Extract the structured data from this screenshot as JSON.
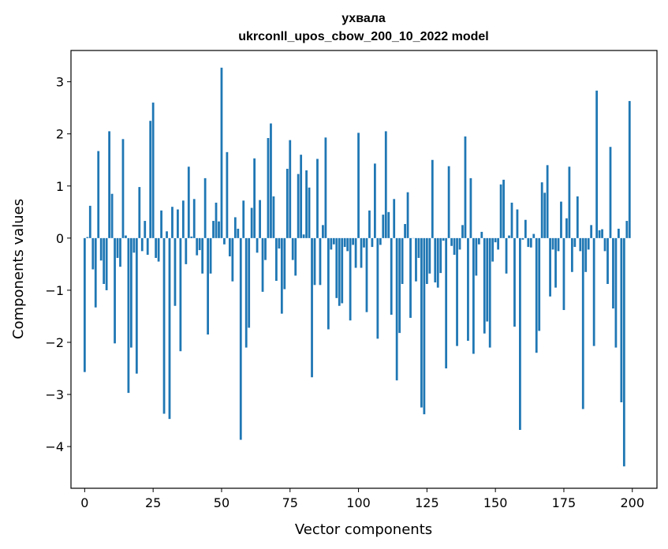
{
  "chart_data": {
    "type": "bar",
    "title": "ухвала",
    "subtitle": "ukrconll_upos_cbow_200_10_2022 model",
    "xlabel": "Vector components",
    "ylabel": "Components values",
    "xlim": [
      -5,
      209
    ],
    "ylim": [
      -4.8,
      3.6
    ],
    "xticks": [
      0,
      25,
      50,
      75,
      100,
      125,
      150,
      175,
      200
    ],
    "yticks": [
      -4,
      -3,
      -2,
      -1,
      0,
      1,
      2,
      3
    ],
    "xtick_labels": [
      "0",
      "25",
      "50",
      "75",
      "100",
      "125",
      "150",
      "175",
      "200"
    ],
    "ytick_labels": [
      "−4",
      "−3",
      "−2",
      "−1",
      "0",
      "1",
      "2",
      "3"
    ],
    "grid": false,
    "bar_color": "#1f77b4",
    "x": [
      0,
      1,
      2,
      3,
      4,
      5,
      6,
      7,
      8,
      9,
      10,
      11,
      12,
      13,
      14,
      15,
      16,
      17,
      18,
      19,
      20,
      21,
      22,
      23,
      24,
      25,
      26,
      27,
      28,
      29,
      30,
      31,
      32,
      33,
      34,
      35,
      36,
      37,
      38,
      39,
      40,
      41,
      42,
      43,
      44,
      45,
      46,
      47,
      48,
      49,
      50,
      51,
      52,
      53,
      54,
      55,
      56,
      57,
      58,
      59,
      60,
      61,
      62,
      63,
      64,
      65,
      66,
      67,
      68,
      69,
      70,
      71,
      72,
      73,
      74,
      75,
      76,
      77,
      78,
      79,
      80,
      81,
      82,
      83,
      84,
      85,
      86,
      87,
      88,
      89,
      90,
      91,
      92,
      93,
      94,
      95,
      96,
      97,
      98,
      99,
      100,
      101,
      102,
      103,
      104,
      105,
      106,
      107,
      108,
      109,
      110,
      111,
      112,
      113,
      114,
      115,
      116,
      117,
      118,
      119,
      120,
      121,
      122,
      123,
      124,
      125,
      126,
      127,
      128,
      129,
      130,
      131,
      132,
      133,
      134,
      135,
      136,
      137,
      138,
      139,
      140,
      141,
      142,
      143,
      144,
      145,
      146,
      147,
      148,
      149,
      150,
      151,
      152,
      153,
      154,
      155,
      156,
      157,
      158,
      159,
      160,
      161,
      162,
      163,
      164,
      165,
      166,
      167,
      168,
      169,
      170,
      171,
      172,
      173,
      174,
      175,
      176,
      177,
      178,
      179,
      180,
      181,
      182,
      183,
      184,
      185,
      186,
      187,
      188,
      189,
      190,
      191,
      192,
      193,
      194,
      195,
      196,
      197,
      198,
      199
    ],
    "values": [
      -2.57,
      0.02,
      0.62,
      -0.6,
      -1.33,
      1.67,
      -0.43,
      -0.88,
      -1.0,
      2.05,
      0.85,
      -2.02,
      -0.38,
      -0.55,
      1.9,
      0.05,
      -2.97,
      -2.1,
      -0.28,
      -2.6,
      0.98,
      -0.25,
      0.33,
      -0.32,
      2.25,
      2.6,
      -0.38,
      -0.45,
      0.53,
      -3.37,
      0.13,
      -3.47,
      0.6,
      -1.3,
      0.55,
      -2.17,
      0.72,
      -0.5,
      1.37,
      0.03,
      0.75,
      -0.33,
      -0.23,
      -0.68,
      1.15,
      -1.85,
      -0.68,
      0.33,
      0.68,
      0.32,
      3.27,
      -0.12,
      1.65,
      -0.35,
      -0.83,
      0.4,
      0.18,
      -3.87,
      0.72,
      -2.1,
      -1.72,
      0.58,
      1.53,
      -0.28,
      0.73,
      -1.03,
      -0.42,
      1.92,
      2.2,
      0.8,
      -0.82,
      -0.2,
      -1.45,
      -0.98,
      1.33,
      1.88,
      -0.42,
      -0.72,
      1.23,
      1.6,
      0.07,
      1.3,
      0.97,
      -2.67,
      -0.9,
      1.52,
      -0.9,
      0.25,
      1.93,
      -1.75,
      -0.22,
      -0.12,
      -1.15,
      -1.3,
      -1.25,
      -0.17,
      -0.25,
      -1.58,
      -0.13,
      -0.57,
      2.02,
      -0.57,
      -0.18,
      -1.42,
      0.53,
      -0.17,
      1.43,
      -1.93,
      -0.13,
      0.45,
      2.05,
      0.5,
      -1.47,
      0.75,
      -2.73,
      -1.82,
      -0.88,
      0.27,
      0.88,
      -1.53,
      0.0,
      -0.83,
      -0.38,
      -3.25,
      -3.38,
      -0.88,
      -0.68,
      1.5,
      -0.85,
      -0.95,
      -0.67,
      -0.05,
      -2.5,
      1.38,
      -0.15,
      -0.32,
      -2.07,
      -0.22,
      0.25,
      1.95,
      -1.97,
      1.15,
      -2.22,
      -0.72,
      -0.12,
      0.12,
      -1.83,
      -1.6,
      -2.1,
      -0.45,
      -0.08,
      -0.22,
      1.03,
      1.12,
      -0.68,
      0.05,
      0.68,
      -1.7,
      0.55,
      -3.68,
      -0.03,
      0.35,
      -0.17,
      -0.18,
      0.08,
      -2.2,
      -1.78,
      1.07,
      0.87,
      1.4,
      -1.12,
      -0.22,
      -0.95,
      -0.25,
      0.7,
      -1.38,
      0.38,
      1.37,
      -0.65,
      -0.17,
      0.8,
      -0.25,
      -3.28,
      -0.65,
      -0.22,
      0.25,
      -2.07,
      2.83,
      0.15,
      0.17,
      -0.25,
      -0.88,
      1.75,
      -1.35,
      -2.1,
      0.18,
      -3.15,
      -4.38,
      0.33,
      2.63
    ]
  }
}
